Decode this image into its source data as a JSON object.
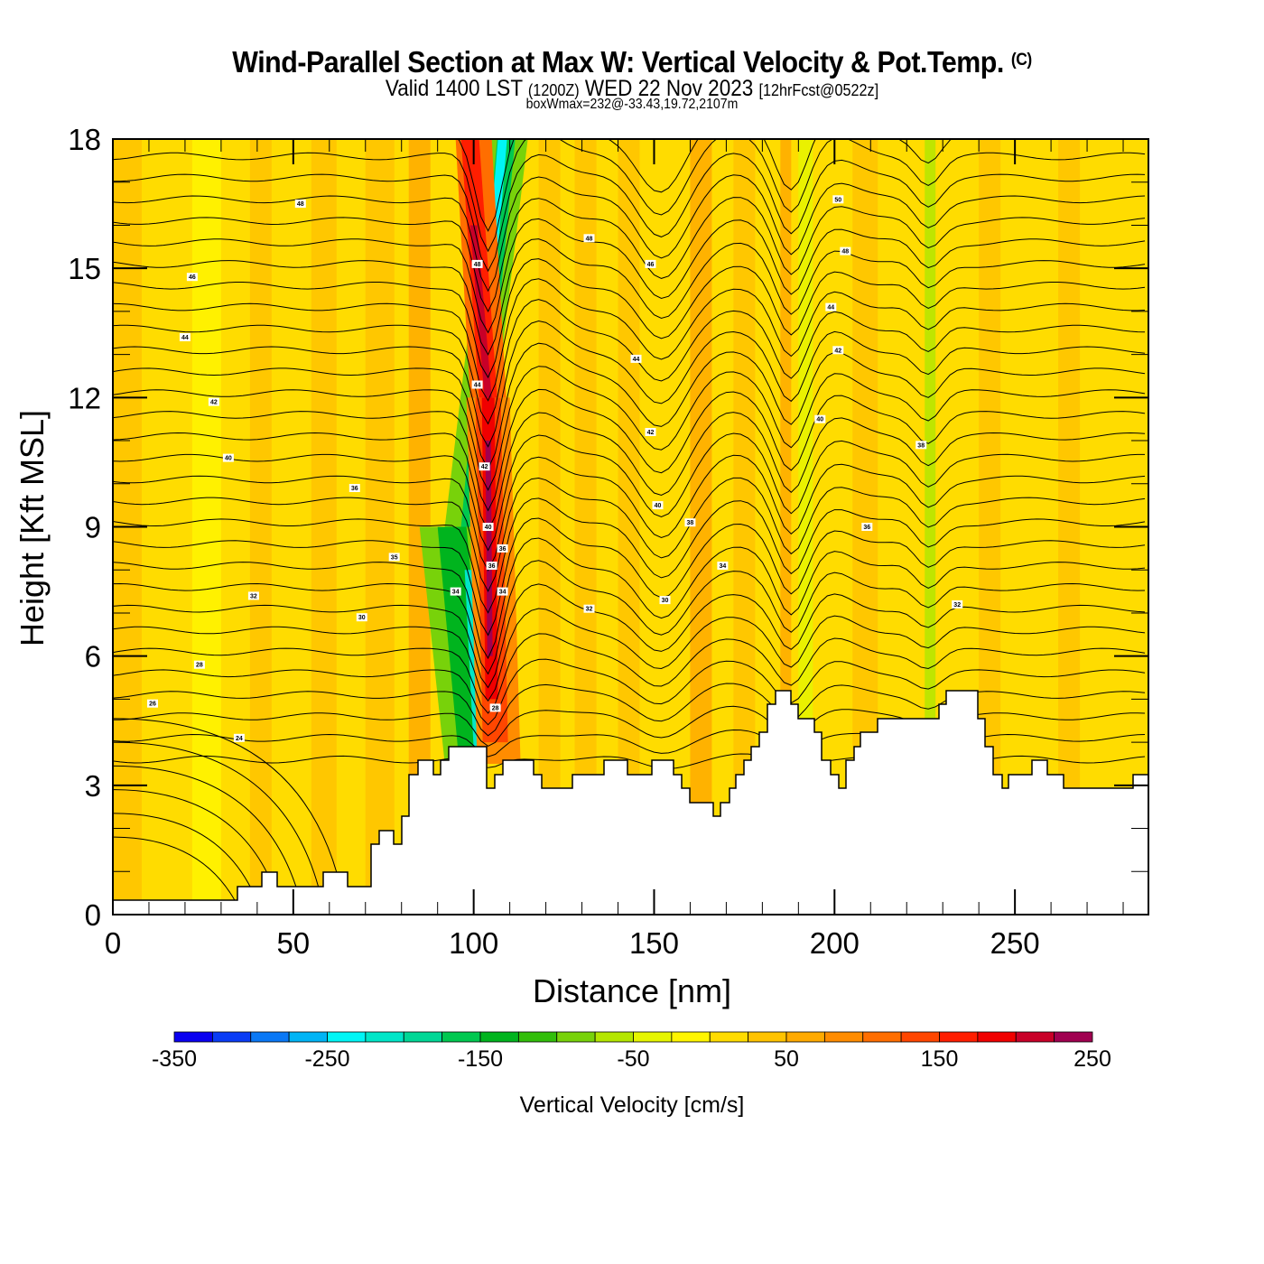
{
  "header": {
    "title": "Wind-Parallel Section at Max W: Vertical Velocity & Pot.Temp.",
    "copyright": "(C)",
    "valid_prefix": "Valid 1400 LST",
    "valid_utc": "(1200Z)",
    "valid_date": "WED 22 Nov 2023",
    "forecast": "[12hrFcst@0522z]",
    "box_info": "boxWmax=232@-33.43,19.72,2107m"
  },
  "chart_data": {
    "type": "heatmap",
    "title": "Wind-Parallel Section at Max W: Vertical Velocity & Pot.Temp.",
    "xlabel": "Distance [nm]",
    "ylabel": "Height [Kft MSL]",
    "xlim": [
      0,
      287
    ],
    "ylim": [
      0,
      18
    ],
    "x_ticks": [
      0,
      50,
      100,
      150,
      200,
      250
    ],
    "x_minor_step": 10,
    "y_ticks": [
      0,
      3,
      6,
      9,
      12,
      15,
      18
    ],
    "y_minor_step": 1,
    "colorbar": {
      "label": "Vertical Velocity [cm/s]",
      "min": -350,
      "max": 250,
      "step": 25,
      "tick_labels": [
        -350,
        -250,
        -150,
        -50,
        50,
        150,
        250
      ],
      "colors": [
        "#0a00f0",
        "#0a3cf5",
        "#0a78f5",
        "#00b4f5",
        "#00f5f5",
        "#00e6c8",
        "#00d796",
        "#00c850",
        "#00b41e",
        "#32be0a",
        "#78d20a",
        "#b4e600",
        "#e6f500",
        "#fff500",
        "#ffdc00",
        "#ffc300",
        "#ffaa00",
        "#ff8c00",
        "#ff6e00",
        "#ff4600",
        "#ff1e00",
        "#f00000",
        "#c80028",
        "#a00050"
      ]
    },
    "wmax_cm_s": 232,
    "features": [
      {
        "name": "updraft core",
        "x_nm": 104,
        "height_kft": [
          3.5,
          18
        ],
        "w_cm_s": 200
      },
      {
        "name": "downdraft core",
        "x_nm": 102,
        "height_kft": [
          3,
          18
        ],
        "w_cm_s": -250
      }
    ],
    "theta_contour_labels": [
      {
        "value": 48,
        "x_nm": 52,
        "y_kft": 16.5
      },
      {
        "value": 46,
        "x_nm": 22,
        "y_kft": 14.8
      },
      {
        "value": 44,
        "x_nm": 20,
        "y_kft": 13.4
      },
      {
        "value": 42,
        "x_nm": 28,
        "y_kft": 11.9
      },
      {
        "value": 40,
        "x_nm": 32,
        "y_kft": 10.6
      },
      {
        "value": 36,
        "x_nm": 67,
        "y_kft": 9.9
      },
      {
        "value": 35,
        "x_nm": 78,
        "y_kft": 8.3
      },
      {
        "value": 32,
        "x_nm": 39,
        "y_kft": 7.4
      },
      {
        "value": 30,
        "x_nm": 69,
        "y_kft": 6.9
      },
      {
        "value": 28,
        "x_nm": 24,
        "y_kft": 5.8
      },
      {
        "value": 26,
        "x_nm": 11,
        "y_kft": 4.9
      },
      {
        "value": 24,
        "x_nm": 35,
        "y_kft": 4.1
      },
      {
        "value": 48,
        "x_nm": 101,
        "y_kft": 15.1
      },
      {
        "value": 44,
        "x_nm": 101,
        "y_kft": 12.3
      },
      {
        "value": 42,
        "x_nm": 103,
        "y_kft": 10.4
      },
      {
        "value": 40,
        "x_nm": 104,
        "y_kft": 9.0
      },
      {
        "value": 36,
        "x_nm": 108,
        "y_kft": 8.5
      },
      {
        "value": 36,
        "x_nm": 105,
        "y_kft": 8.1
      },
      {
        "value": 34,
        "x_nm": 108,
        "y_kft": 7.5
      },
      {
        "value": 34,
        "x_nm": 95,
        "y_kft": 7.5
      },
      {
        "value": 28,
        "x_nm": 106,
        "y_kft": 4.8
      },
      {
        "value": 48,
        "x_nm": 132,
        "y_kft": 15.7
      },
      {
        "value": 46,
        "x_nm": 149,
        "y_kft": 15.1
      },
      {
        "value": 44,
        "x_nm": 145,
        "y_kft": 12.9
      },
      {
        "value": 42,
        "x_nm": 149,
        "y_kft": 11.2
      },
      {
        "value": 40,
        "x_nm": 151,
        "y_kft": 9.5
      },
      {
        "value": 38,
        "x_nm": 160,
        "y_kft": 9.1
      },
      {
        "value": 34,
        "x_nm": 169,
        "y_kft": 8.1
      },
      {
        "value": 30,
        "x_nm": 153,
        "y_kft": 7.3
      },
      {
        "value": 32,
        "x_nm": 132,
        "y_kft": 7.1
      },
      {
        "value": 50,
        "x_nm": 201,
        "y_kft": 16.6
      },
      {
        "value": 48,
        "x_nm": 203,
        "y_kft": 15.4
      },
      {
        "value": 44,
        "x_nm": 199,
        "y_kft": 14.1
      },
      {
        "value": 42,
        "x_nm": 201,
        "y_kft": 13.1
      },
      {
        "value": 40,
        "x_nm": 196,
        "y_kft": 11.5
      },
      {
        "value": 38,
        "x_nm": 224,
        "y_kft": 10.9
      },
      {
        "value": 36,
        "x_nm": 209,
        "y_kft": 9.0
      },
      {
        "value": 32,
        "x_nm": 234,
        "y_kft": 7.2
      }
    ],
    "terrain_kft_note": "terrain (white) blocks up to ~5.2 kft near 185 nm and 233 nm"
  }
}
